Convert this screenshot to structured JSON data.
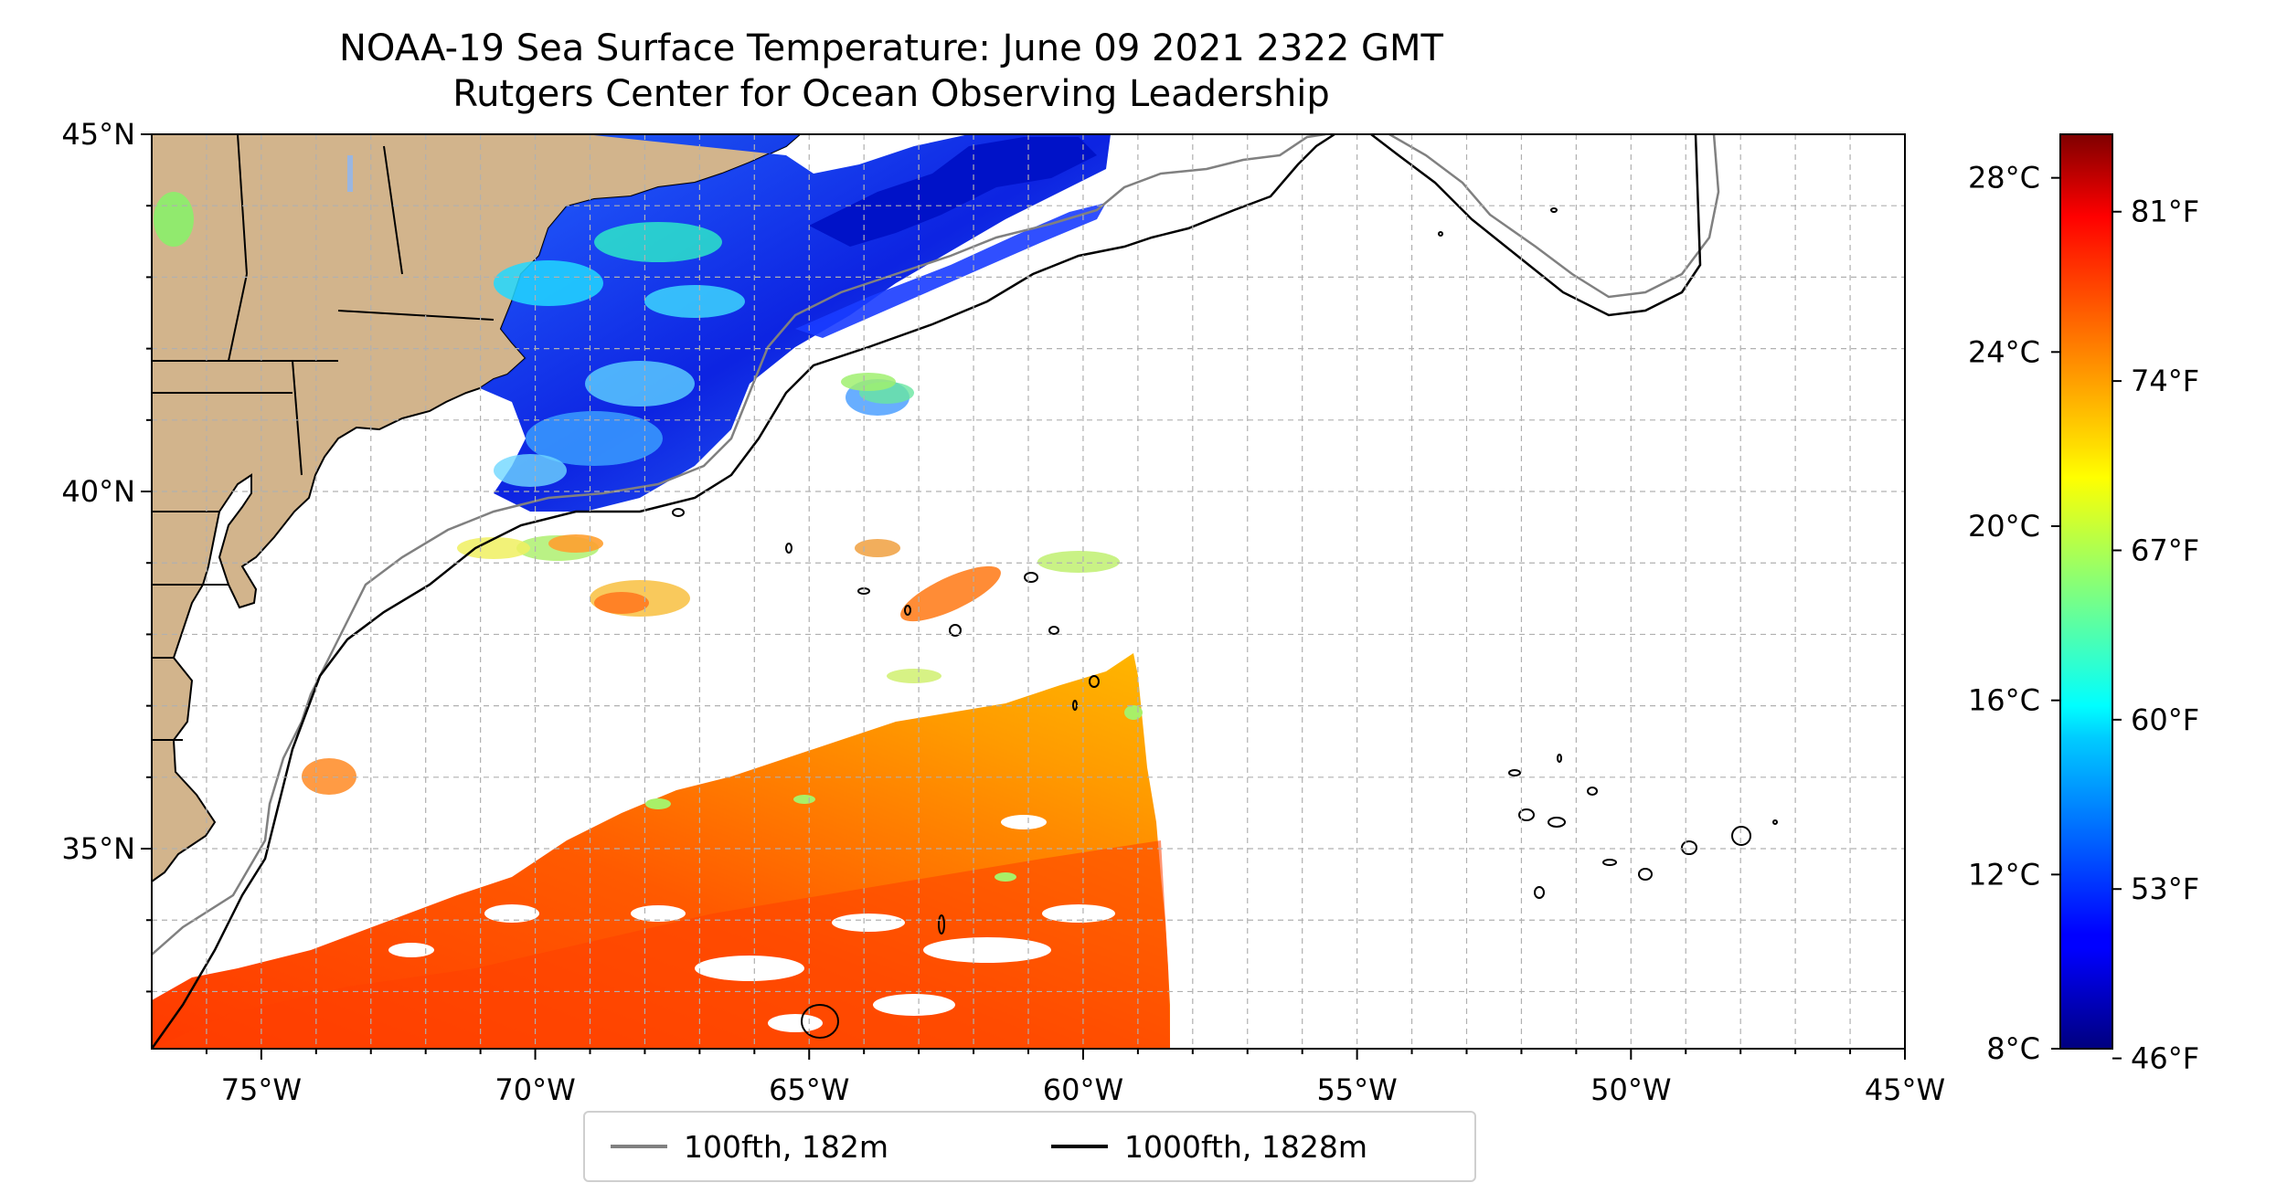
{
  "title": {
    "line1": "NOAA-19 Sea Surface Temperature: June 09 2021 2322 GMT",
    "line2": "Rutgers Center for Ocean Observing Leadership"
  },
  "map": {
    "extent": {
      "lon_min": -77,
      "lon_max": -45,
      "lat_min": 32.2,
      "lat_max": 45
    },
    "lon_ticks": [
      {
        "value": -75,
        "label": "75°W"
      },
      {
        "value": -70,
        "label": "70°W"
      },
      {
        "value": -65,
        "label": "65°W"
      },
      {
        "value": -60,
        "label": "60°W"
      },
      {
        "value": -55,
        "label": "55°W"
      },
      {
        "value": -50,
        "label": "50°W"
      },
      {
        "value": -45,
        "label": "45°W"
      }
    ],
    "lat_ticks": [
      {
        "value": 45,
        "label": "45°N"
      },
      {
        "value": 40,
        "label": "40°N"
      },
      {
        "value": 35,
        "label": "35°N"
      }
    ],
    "gridlines": true,
    "land_color": "#d2b48c"
  },
  "colorbar": {
    "colormap": "jet",
    "range_c": [
      8,
      29
    ],
    "celsius_ticks": [
      {
        "value": 28,
        "label": "28°C"
      },
      {
        "value": 24,
        "label": "24°C"
      },
      {
        "value": 20,
        "label": "20°C"
      },
      {
        "value": 16,
        "label": "16°C"
      },
      {
        "value": 12,
        "label": "12°C"
      },
      {
        "value": 8,
        "label": "8°C"
      }
    ],
    "fahrenheit_ticks": [
      {
        "value": 81,
        "label": "81°F"
      },
      {
        "value": 74,
        "label": "74°F"
      },
      {
        "value": 67,
        "label": "67°F"
      },
      {
        "value": 60,
        "label": "60°F"
      },
      {
        "value": 53,
        "label": "53°F"
      },
      {
        "value": 46,
        "label": "46°F"
      }
    ]
  },
  "legend": {
    "items": [
      {
        "label": "100fth, 182m",
        "color": "#808080"
      },
      {
        "label": "1000fth, 1828m",
        "color": "#000000"
      }
    ]
  }
}
